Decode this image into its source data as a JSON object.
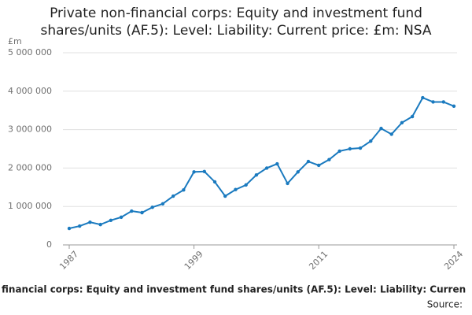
{
  "chart_data": {
    "type": "line",
    "title": "Private non-financial corps: Equity and investment fund shares/units (AF.5): Level: Liability: Current price: £m: NSA",
    "y_label": "£m",
    "caption": "financial corps: Equity and investment fund shares/units (AF.5): Level: Liability: Curren",
    "source": "Source:",
    "x": [
      1987,
      1988,
      1989,
      1990,
      1991,
      1992,
      1993,
      1994,
      1995,
      1996,
      1997,
      1998,
      1999,
      2000,
      2001,
      2002,
      2003,
      2004,
      2005,
      2006,
      2007,
      2008,
      2009,
      2010,
      2011,
      2012,
      2013,
      2014,
      2015,
      2016,
      2017,
      2018,
      2019,
      2020,
      2021,
      2022,
      2023,
      2024
    ],
    "series": [
      {
        "color": "#1a7abf",
        "values": [
          430000,
          490000,
          590000,
          530000,
          640000,
          720000,
          880000,
          840000,
          980000,
          1070000,
          1270000,
          1430000,
          1900000,
          1910000,
          1640000,
          1270000,
          1440000,
          1560000,
          1820000,
          2000000,
          2110000,
          1600000,
          1900000,
          2170000,
          2070000,
          2220000,
          2440000,
          2500000,
          2520000,
          2700000,
          3030000,
          2880000,
          3180000,
          3340000,
          3830000,
          3720000,
          3720000,
          3610000
        ]
      }
    ],
    "xlim": [
      1987,
      2024
    ],
    "xticks": [
      1987,
      1999,
      2011,
      2024
    ],
    "ylim": [
      0,
      5000000
    ],
    "yticks": [
      0,
      {
        "value": 1000000,
        "label": "1 000 000"
      },
      {
        "value": 2000000,
        "label": "2 000 000"
      },
      {
        "value": 3000000,
        "label": "3 000 000"
      },
      {
        "value": 4000000,
        "label": "4 000 000"
      },
      {
        "value": 5000000,
        "label": "5 000 000"
      }
    ],
    "grid": true
  }
}
